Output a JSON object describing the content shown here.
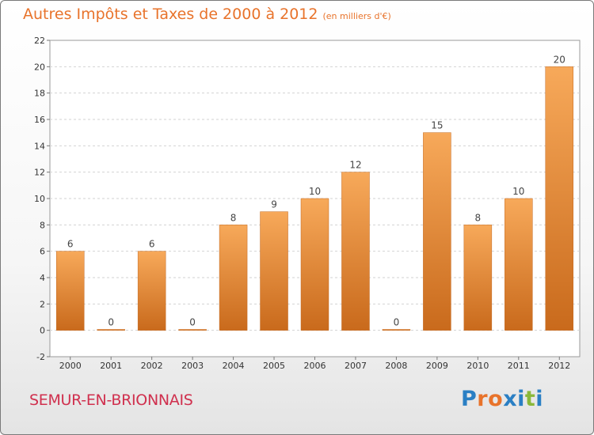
{
  "header": {
    "title": "Autres Impôts et Taxes de 2000 à 2012",
    "subtitle": "(en milliers d'€)"
  },
  "footer": {
    "commune": "SEMUR-EN-BRIONNAIS",
    "logo_text": "Proxiti"
  },
  "colors": {
    "accent": "#e8732b",
    "commune": "#d0304e",
    "bar_top": "#f7a95a",
    "bar_bottom": "#c96a1c",
    "logo_letters": [
      "#2a7fc4",
      "#e8732b",
      "#e8732b",
      "#2a7fc4",
      "#2a7fc4",
      "#8ab83a",
      "#2a7fc4"
    ]
  },
  "chart_data": {
    "type": "bar",
    "title": "Autres Impôts et Taxes de 2000 à 2012",
    "subtitle": "(en milliers d'€)",
    "categories": [
      "2000",
      "2001",
      "2002",
      "2003",
      "2004",
      "2005",
      "2006",
      "2007",
      "2008",
      "2009",
      "2010",
      "2011",
      "2012"
    ],
    "values": [
      6,
      0,
      6,
      0,
      8,
      9,
      10,
      12,
      0,
      15,
      8,
      10,
      20
    ],
    "data_labels": [
      "6",
      "0",
      "6",
      "0",
      "8",
      "9",
      "10",
      "12",
      "0",
      "15",
      "8",
      "10",
      "20"
    ],
    "ylim": [
      -2,
      22
    ],
    "yticks": [
      "-2",
      "0",
      "2",
      "4",
      "6",
      "8",
      "10",
      "12",
      "14",
      "16",
      "18",
      "20",
      "22"
    ],
    "grid": true,
    "xlabel": "",
    "ylabel": ""
  }
}
